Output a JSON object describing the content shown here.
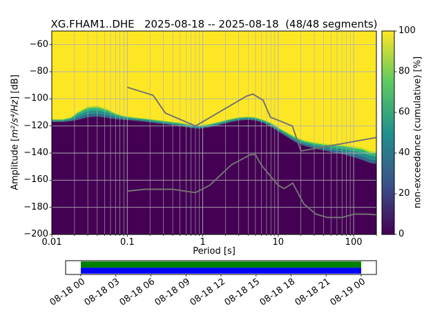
{
  "title": "XG.FHAM1..DHE   2025-08-18 -- 2025-08-18  (48/48 segments)",
  "axes": {
    "x_label": "Period [s]",
    "y_label_pre": "Amplitude [",
    "y_label_math": "m²/s⁴/Hz",
    "y_label_post": "] [dB]",
    "x_tick_labels": [
      "0.01",
      "0.1",
      "1",
      "10",
      "100"
    ],
    "y_tick_labels": [
      "−60",
      "−80",
      "−100",
      "−120",
      "−140",
      "−160",
      "−180",
      "−200"
    ]
  },
  "colorbar": {
    "label": "non-exceedance (cumulative) [%]",
    "tick_labels": [
      "0",
      "20",
      "40",
      "60",
      "80",
      "100"
    ]
  },
  "timeline": {
    "tick_labels": [
      "08-18 00",
      "08-18 03",
      "08-18 06",
      "08-18 09",
      "08-18 12",
      "08-18 15",
      "08-18 18",
      "08-18 21",
      "08-19 00"
    ]
  },
  "colors": {
    "background": "#ffffff",
    "heat_low": "#440154",
    "heat_high": "#fde725",
    "band_colors": [
      "#31688e",
      "#21918c",
      "#35b779",
      "#bddf26"
    ],
    "grid": "#b0b0b0",
    "noise_model": "#737373",
    "spine": "#000000",
    "colorbar_stops": [
      "#440154",
      "#3b528b",
      "#21918c",
      "#5ec962",
      "#fde725"
    ],
    "timeline_green": "#008000",
    "timeline_blue": "#0000ff"
  },
  "chart_data": {
    "type": "heatmap",
    "title": "XG.FHAM1..DHE   2025-08-18 -- 2025-08-18  (48/48 segments)",
    "xlabel": "Period [s]",
    "ylabel": "Amplitude [m²/s⁴/Hz] [dB]",
    "xscale": "log",
    "xlim": [
      0.01,
      200
    ],
    "ylim": [
      -200,
      -50
    ],
    "x_tick_values": [
      0.01,
      0.1,
      1,
      10,
      100
    ],
    "y_tick_values": [
      -60,
      -80,
      -100,
      -120,
      -140,
      -160,
      -180,
      -200
    ],
    "colormap": "viridis",
    "colorbar_label": "non-exceedance (cumulative) [%]",
    "colorbar_tick_values": [
      0,
      20,
      40,
      60,
      80,
      100
    ],
    "segments": "48/48",
    "psd_boundary": {
      "description": "Cumulative non-exceedance PPSD: top of the 0% (dark) region and dB width of the colour transition band up to the 100% (yellow) region, as [period_s, db, band_db]",
      "points": [
        [
          0.01,
          -117,
          2
        ],
        [
          0.014,
          -117,
          2
        ],
        [
          0.018,
          -116.5,
          3
        ],
        [
          0.022,
          -115.5,
          6
        ],
        [
          0.03,
          -113.5,
          8
        ],
        [
          0.04,
          -113,
          8
        ],
        [
          0.055,
          -114,
          6.5
        ],
        [
          0.07,
          -115,
          4.5
        ],
        [
          0.09,
          -115.5,
          3
        ],
        [
          0.12,
          -116,
          2.5
        ],
        [
          0.18,
          -117,
          2.5
        ],
        [
          0.25,
          -118,
          2.5
        ],
        [
          0.35,
          -119,
          2.5
        ],
        [
          0.5,
          -120,
          2.5
        ],
        [
          0.7,
          -121.5,
          2.5
        ],
        [
          0.9,
          -122,
          2.5
        ],
        [
          1.2,
          -121,
          2.5
        ],
        [
          1.6,
          -119.5,
          2.5
        ],
        [
          2.2,
          -117.5,
          2.5
        ],
        [
          3,
          -116,
          2.5
        ],
        [
          4,
          -115.5,
          2.5
        ],
        [
          5,
          -116,
          2.5
        ],
        [
          6.5,
          -118,
          2.5
        ],
        [
          8,
          -120.5,
          3
        ],
        [
          10,
          -124,
          3
        ],
        [
          13,
          -128,
          3.5
        ],
        [
          17,
          -132,
          4
        ],
        [
          22,
          -134.5,
          4
        ],
        [
          30,
          -136.5,
          4.5
        ],
        [
          40,
          -138,
          5
        ],
        [
          55,
          -139.5,
          6
        ],
        [
          75,
          -141,
          7
        ],
        [
          100,
          -143,
          8
        ],
        [
          130,
          -145,
          9
        ],
        [
          160,
          -147,
          9
        ],
        [
          200,
          -148,
          9
        ]
      ]
    },
    "noise_models": {
      "description": "Peterson NHNM / NLNM reference curves as [period_s, db]",
      "nhnm": [
        [
          0.1,
          -91.5
        ],
        [
          0.22,
          -97.4
        ],
        [
          0.32,
          -110.5
        ],
        [
          0.8,
          -120
        ],
        [
          3.8,
          -98
        ],
        [
          4.6,
          -96.5
        ],
        [
          6.3,
          -101
        ],
        [
          7.9,
          -113.5
        ],
        [
          15.4,
          -120
        ],
        [
          20,
          -138.5
        ],
        [
          200,
          -128.5
        ]
      ],
      "nlnm": [
        [
          0.1,
          -168
        ],
        [
          0.17,
          -166.7
        ],
        [
          0.4,
          -166.7
        ],
        [
          0.8,
          -169.2
        ],
        [
          1.24,
          -163.7
        ],
        [
          2.4,
          -148.6
        ],
        [
          4.3,
          -141.1
        ],
        [
          5,
          -141.1
        ],
        [
          6,
          -149
        ],
        [
          10,
          -163.8
        ],
        [
          12,
          -166.2
        ],
        [
          15.6,
          -162.1
        ],
        [
          21.9,
          -177.5
        ],
        [
          31.6,
          -185
        ],
        [
          45,
          -187.5
        ],
        [
          70,
          -187.5
        ],
        [
          101,
          -185
        ],
        [
          154,
          -185
        ],
        [
          200,
          -185.5
        ]
      ]
    },
    "time_coverage": {
      "start": "08-18 00",
      "end": "08-19 00",
      "tick_step_hours": 3
    }
  }
}
